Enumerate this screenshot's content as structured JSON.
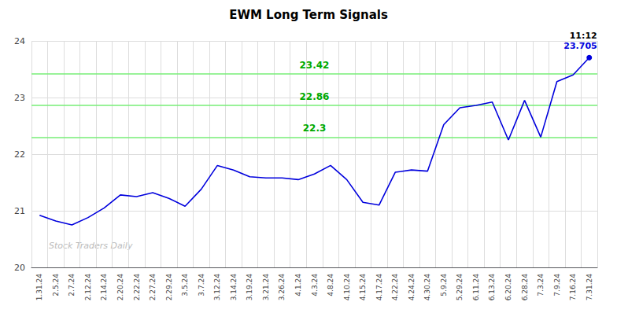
{
  "chart_data": {
    "type": "line",
    "title": "EWM Long Term Signals",
    "watermark": "Stock Traders Daily",
    "annotations": [
      "11:12",
      "23.705"
    ],
    "categories": [
      "1.31.24",
      "2.5.24",
      "2.7.24",
      "2.12.24",
      "2.14.24",
      "2.20.24",
      "2.22.24",
      "2.27.24",
      "2.29.24",
      "3.5.24",
      "3.7.24",
      "3.12.24",
      "3.14.24",
      "3.19.24",
      "3.21.24",
      "3.26.24",
      "4.1.24",
      "4.3.24",
      "4.8.24",
      "4.10.24",
      "4.15.24",
      "4.17.24",
      "4.22.24",
      "4.24.24",
      "4.30.24",
      "5.9.24",
      "5.29.24",
      "6.11.24",
      "6.13.24",
      "6.20.24",
      "6.28.24",
      "7.3.24",
      "7.9.24",
      "7.16.24",
      "7.31.24"
    ],
    "values": [
      20.92,
      20.82,
      20.75,
      20.88,
      21.05,
      21.28,
      21.25,
      21.32,
      21.22,
      21.08,
      21.38,
      21.8,
      21.72,
      21.6,
      21.58,
      21.58,
      21.55,
      21.65,
      21.8,
      21.55,
      21.15,
      21.1,
      21.68,
      21.72,
      21.7,
      22.52,
      22.82,
      22.86,
      22.92,
      22.25,
      22.95,
      22.3,
      23.28,
      23.4,
      23.705
    ],
    "color": "#0000dd",
    "hlines": [
      {
        "value": 23.42,
        "label": "23.42",
        "color": "#77ee77"
      },
      {
        "value": 22.86,
        "label": "22.86",
        "color": "#77ee77"
      },
      {
        "value": 22.3,
        "label": "22.3",
        "color": "#77ee77"
      }
    ],
    "hline_label_color": "#00aa00",
    "ylim": [
      20,
      24
    ],
    "yticks": [
      20,
      21,
      22,
      23,
      24
    ],
    "grid": true
  }
}
